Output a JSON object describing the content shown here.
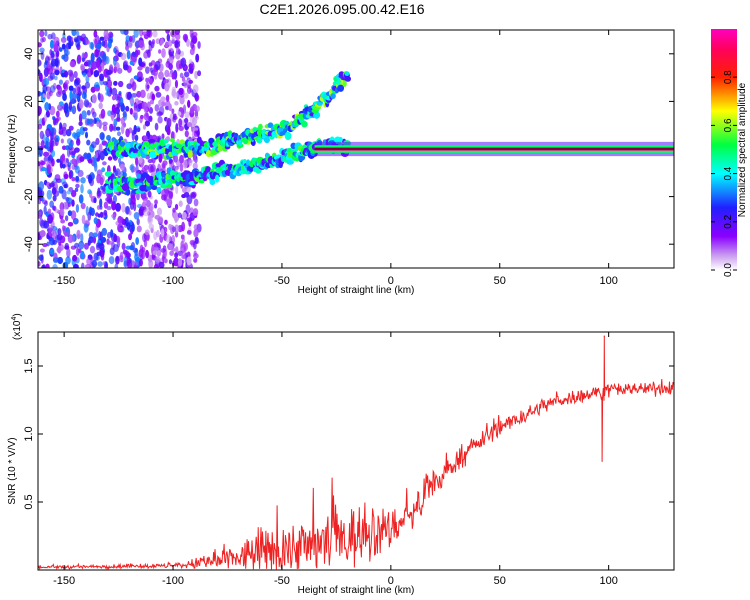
{
  "figure_title": "C2E1.2026.095.00.42.E16",
  "chart_data": [
    {
      "type": "heatmap",
      "title": "",
      "xlabel": "Height of straight line (km)",
      "ylabel": "Frequency (Hz)",
      "xlim": [
        -162,
        130
      ],
      "ylim": [
        -50,
        50
      ],
      "xticks": [
        -150,
        -100,
        -50,
        0,
        50,
        100
      ],
      "yticks": [
        -40,
        -20,
        0,
        20,
        40
      ],
      "colorbar": {
        "label": "Normalized spectral amplitude",
        "range": [
          0,
          1
        ],
        "ticks": [
          0.0,
          0.2,
          0.4,
          0.6,
          0.8
        ],
        "colors": [
          "#ffffff",
          "#8b00ff",
          "#0000ff",
          "#00ffff",
          "#00ff00",
          "#ffff00",
          "#ff0000",
          "#ff00ff"
        ]
      },
      "features": [
        {
          "name": "main-carrier",
          "x_range": [
            -35,
            130
          ],
          "freq": 0,
          "amplitude": 0.95
        },
        {
          "name": "upper-branch",
          "points": [
            [
              -130,
              0
            ],
            [
              -100,
              0
            ],
            [
              -80,
              2
            ],
            [
              -60,
              6
            ],
            [
              -45,
              10
            ],
            [
              -35,
              17
            ],
            [
              -25,
              26
            ],
            [
              -20,
              32
            ]
          ],
          "amplitude": 0.5
        },
        {
          "name": "lower-branch",
          "points": [
            [
              -130,
              -14
            ],
            [
              -120,
              -15
            ],
            [
              -110,
              -14
            ],
            [
              -100,
              -12
            ],
            [
              -90,
              -13
            ],
            [
              -80,
              -9
            ],
            [
              -60,
              -7
            ],
            [
              -50,
              -4
            ],
            [
              -40,
              -1
            ],
            [
              -30,
              2
            ],
            [
              -20,
              0
            ]
          ],
          "amplitude": 0.45
        },
        {
          "name": "noise-region",
          "x_range": [
            -162,
            -88
          ],
          "freq_range": [
            -50,
            50
          ],
          "amplitude": 0.2
        }
      ]
    },
    {
      "type": "line",
      "title": "",
      "xlabel": "Height of straight line (km)",
      "ylabel": "SNR (10 * V/V)",
      "scale_label": "(x10",
      "scale_exp": "4",
      "xlim": [
        -162,
        130
      ],
      "ylim": [
        0,
        1.75
      ],
      "xticks": [
        -150,
        -100,
        -50,
        0,
        50,
        100
      ],
      "yticks": [
        0.5,
        1.0,
        1.5
      ],
      "color": "#ee2222",
      "series": [
        {
          "name": "SNR",
          "trend": {
            "x": [
              -162,
              -100,
              -80,
              -60,
              -40,
              -20,
              -10,
              0,
              10,
              20,
              30,
              40,
              50,
              60,
              70,
              80,
              90,
              100,
              110,
              130
            ],
            "y": [
              0.02,
              0.03,
              0.06,
              0.12,
              0.18,
              0.24,
              0.26,
              0.3,
              0.42,
              0.62,
              0.8,
              0.93,
              1.05,
              1.12,
              1.21,
              1.26,
              1.29,
              1.32,
              1.33,
              1.34
            ]
          },
          "noise_amplitude": {
            "x": [
              -162,
              -100,
              -80,
              -60,
              -40,
              -20,
              0,
              20,
              50,
              80,
              130
            ],
            "y": [
              0.01,
              0.015,
              0.06,
              0.14,
              0.2,
              0.22,
              0.14,
              0.08,
              0.05,
              0.05,
              0.04
            ]
          },
          "spikes": [
            {
              "x": 98,
              "y": 1.72
            },
            {
              "x": 97,
              "y": 0.8
            }
          ]
        }
      ]
    }
  ]
}
